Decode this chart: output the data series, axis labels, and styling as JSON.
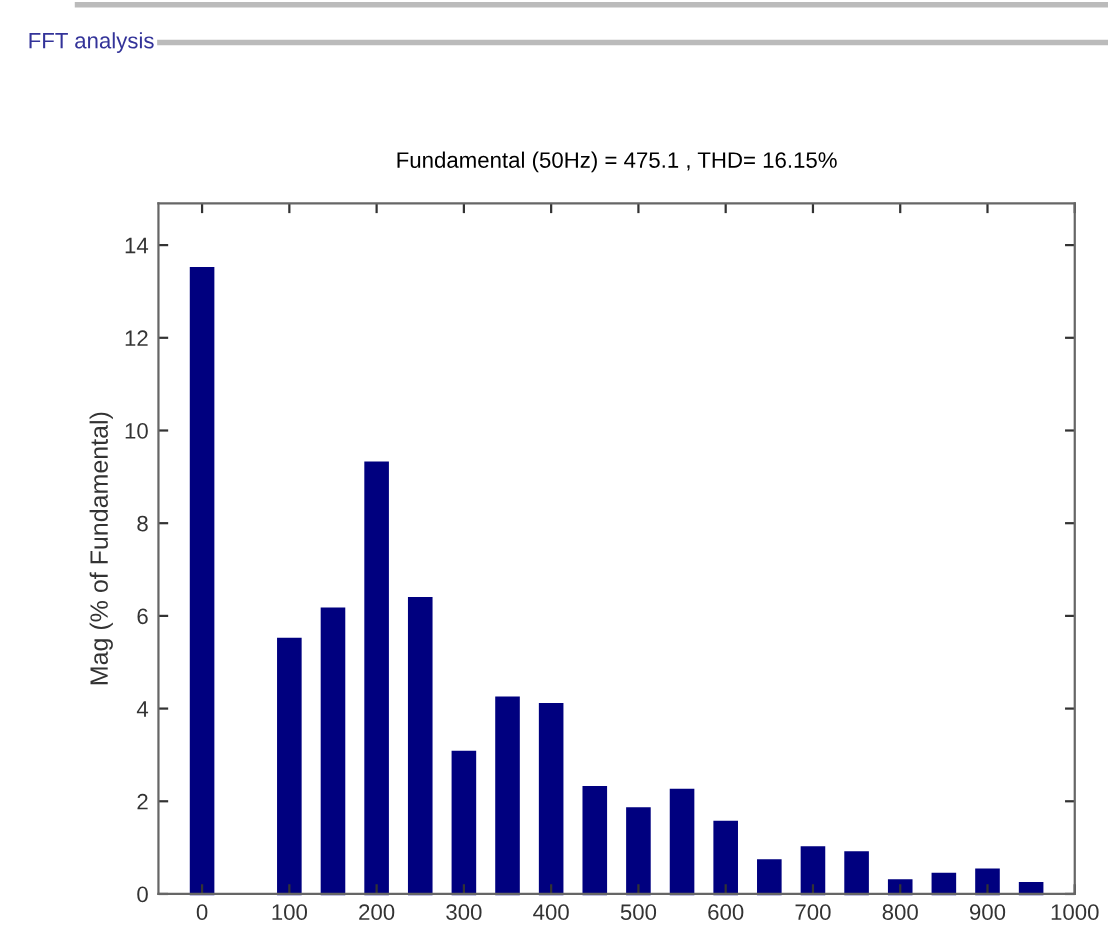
{
  "chart_data": {
    "type": "bar",
    "title": "FFT analysis",
    "subtitle": "Fundamental (50Hz) = 475.1 , THD= 16.15%",
    "ylabel": "Mag (% of Fundamental)",
    "x": [
      0,
      50,
      100,
      150,
      200,
      250,
      300,
      350,
      400,
      450,
      500,
      550,
      600,
      650,
      700,
      750,
      800,
      850,
      900,
      950
    ],
    "values": [
      13.5,
      null,
      5.5,
      6.15,
      9.3,
      6.38,
      3.06,
      4.23,
      4.09,
      2.3,
      1.84,
      2.24,
      1.55,
      0.72,
      1.0,
      0.89,
      0.29,
      0.43,
      0.52,
      0.23
    ],
    "color": "#00007f",
    "xlim": [
      -50,
      1000
    ],
    "ylim": [
      0,
      14.9
    ],
    "xticks": [
      0,
      100,
      200,
      300,
      400,
      500,
      600,
      700,
      800,
      900,
      1000
    ],
    "yticks": [
      0,
      2,
      4,
      6,
      8,
      10,
      12,
      14
    ],
    "grid": false
  }
}
